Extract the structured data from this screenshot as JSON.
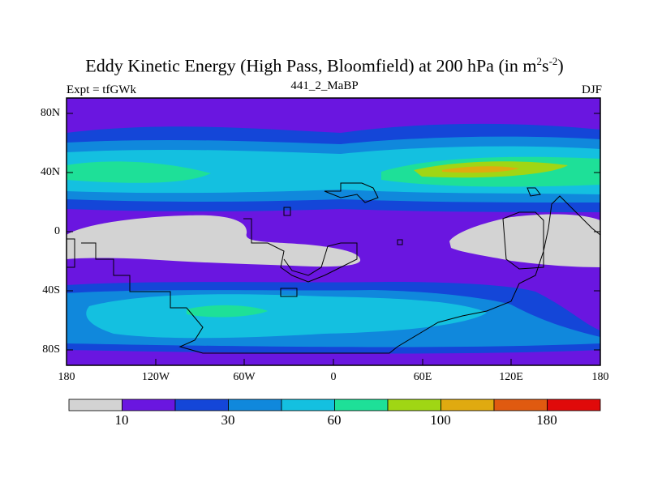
{
  "title": {
    "main": "Eddy Kinetic Energy (High Pass, Bloomfield) at 200 hPa (in m",
    "sup1": "2",
    "mid": "s",
    "sup2": "-2",
    "end": ")"
  },
  "subtitle_left": "Expt = tfGWk",
  "subtitle_center": "441_2_MaBP",
  "subtitle_right": "DJF",
  "lat_labels": [
    "80N",
    "40N",
    "0",
    "40S",
    "80S"
  ],
  "lon_labels": [
    "180",
    "120W",
    "60W",
    "0",
    "60E",
    "120E",
    "180"
  ],
  "colorbar": {
    "colors": [
      "#d3d3d3",
      "#6a16e0",
      "#1446d8",
      "#1088dc",
      "#14c0e0",
      "#1ee098",
      "#a0d614",
      "#e0aa10",
      "#e05a10",
      "#e00a0a"
    ],
    "labels": [
      "10",
      "30",
      "60",
      "100",
      "180"
    ]
  },
  "palette": {
    "grey": "#d3d3d3",
    "purple": "#6a16e0",
    "blue": "#1446d8",
    "mid_blue": "#1088dc",
    "cyan": "#14c0e0",
    "green": "#1ee098",
    "yellowgreen": "#a0d614",
    "orange": "#e0aa10",
    "coast": "#000000"
  }
}
